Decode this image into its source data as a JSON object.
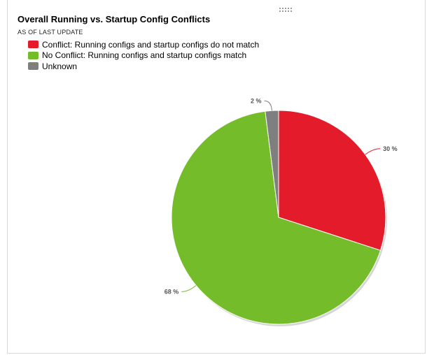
{
  "widget": {
    "title": "Overall Running vs. Startup Config Conflicts",
    "subtitle": "AS OF LAST UPDATE"
  },
  "chart_data": {
    "type": "pie",
    "title": "Overall Running vs. Startup Config Conflicts",
    "subtitle": "AS OF LAST UPDATE",
    "legend_position": "top-left",
    "slices": [
      {
        "name": "Conflict: Running configs and startup configs do not match",
        "value": 30,
        "label": "30 %",
        "color": "#e41b2a"
      },
      {
        "name": "No Conflict: Running configs and startup configs match",
        "value": 68,
        "label": "68 %",
        "color": "#74bc2a"
      },
      {
        "name": "Unknown",
        "value": 2,
        "label": "2 %",
        "color": "#7f7f7f"
      }
    ]
  }
}
